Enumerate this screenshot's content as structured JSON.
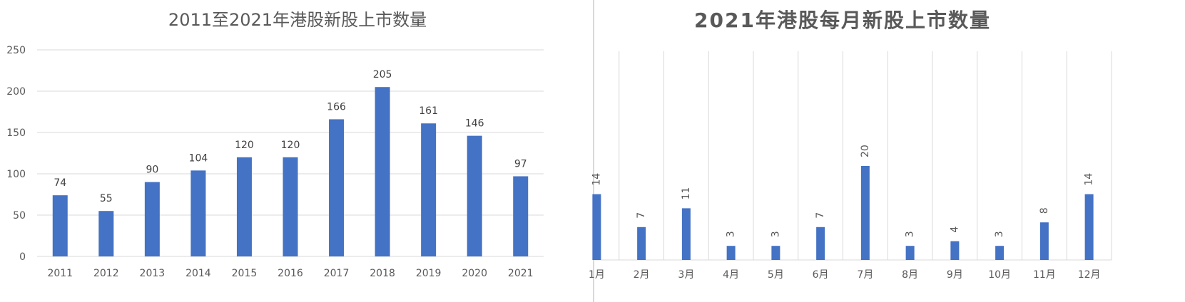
{
  "chart_data": [
    {
      "type": "bar",
      "title": "2011至2021年港股新股上市数量",
      "categories": [
        "2011",
        "2012",
        "2013",
        "2014",
        "2015",
        "2016",
        "2017",
        "2018",
        "2019",
        "2020",
        "2021"
      ],
      "values": [
        74,
        55,
        90,
        104,
        120,
        120,
        166,
        205,
        161,
        146,
        97
      ],
      "ylim": [
        0,
        250
      ],
      "yticks": [
        0,
        50,
        100,
        150,
        200,
        250
      ],
      "grid": true,
      "data_labels": true,
      "bar_color": "#4472c4"
    },
    {
      "type": "bar",
      "title": "2021年港股每月新股上市数量",
      "categories": [
        "1月",
        "2月",
        "3月",
        "4月",
        "5月",
        "6月",
        "7月",
        "8月",
        "9月",
        "10月",
        "11月",
        "12月"
      ],
      "values": [
        14,
        7,
        11,
        3,
        3,
        7,
        20,
        3,
        4,
        3,
        8,
        14
      ],
      "grid": true,
      "data_labels": true,
      "bar_color": "#4472c4"
    }
  ]
}
